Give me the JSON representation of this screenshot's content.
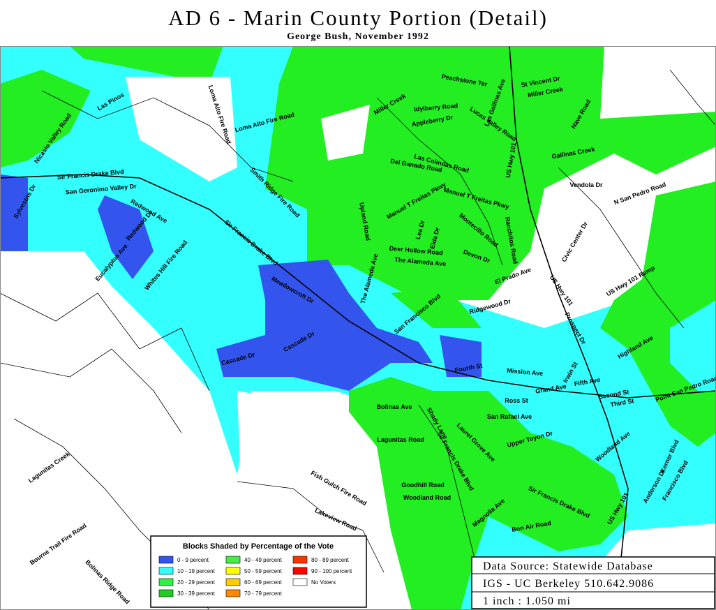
{
  "header": {
    "title": "AD 6 - Marin County Portion (Detail)",
    "subtitle": "George Bush, November 1992"
  },
  "legend": {
    "title": "Blocks Shaded by Percentage of the Vote",
    "items": [
      {
        "label": "0 - 9 percent",
        "color": "#3355ee"
      },
      {
        "label": "10 - 19 percent",
        "color": "#33ffff"
      },
      {
        "label": "20 - 29 percent",
        "color": "#33ee44"
      },
      {
        "label": "30 - 39 percent",
        "color": "#22cc22"
      },
      {
        "label": "40 - 49 percent",
        "color": "#44ee44"
      },
      {
        "label": "50 - 59 percent",
        "color": "#ffff00"
      },
      {
        "label": "60 - 69 percent",
        "color": "#ffcc00"
      },
      {
        "label": "70 - 79 percent",
        "color": "#ff8800"
      },
      {
        "label": "80 - 89 percent",
        "color": "#ff3300"
      },
      {
        "label": "90 - 100 percent",
        "color": "#ff0000"
      },
      {
        "label": "No Voters",
        "color": "#ffffff"
      }
    ]
  },
  "source_box": {
    "lines": [
      "Data Source: Statewide Database",
      "IGS - UC Berkeley 510.642.9086",
      "1 inch : 1.050 mi"
    ]
  },
  "labels": [
    "Peachstone Ter",
    "St Vincent Dr",
    "Miller Creek",
    "Idylberry Road",
    "Miller Creek",
    "Appleberry Dr",
    "Lucas Valley Road",
    "Las Gallinas Ave",
    "Nave Road",
    "Loma Alto Fire Road",
    "Loma Alto Fire Road",
    "Las Pinos",
    "Nicasio Valley Road",
    "Sir Francis Drake Blvd",
    "San Geronimo Valley Dr",
    "Sylvestris Dr",
    "Redwood Dr",
    "Redwood Ave",
    "Eucalyptus Ave",
    "Whites Hill Fire Road",
    "Smith Ridge Fire Road",
    "Sir Francis Drake Blvd",
    "Meadowcroft Dr",
    "Cascade Dr",
    "Cascade Dr",
    "Las Colindas Road",
    "Del Ganado Road",
    "US Hwy 101",
    "Manuel T Freitas Pkwy",
    "Manuel T Freitas Pkwy",
    "Upland Road",
    "Lea Dr",
    "Elda Dr",
    "Montecillo Road",
    "Ranchitos Road",
    "Deer Hollow Road",
    "The Alameda Ave",
    "Devon Dr",
    "The Alameda Ave",
    "Ridgewood Dr",
    "San Francisco Blvd",
    "El Prado Ave",
    "US Hwy 101",
    "US Hwy 101 Ramp",
    "Vendola Dr",
    "N San Pedro Road",
    "Gallinas Creek",
    "Civic Center Dr",
    "Mission Ave",
    "Fourth St",
    "Grand Ave",
    "Irwin St",
    "Fifth Ave",
    "Second St",
    "Third St",
    "Point San Pedro Road",
    "Francisco Blvd",
    "Kerner Blvd",
    "Anderson Dr",
    "Woodland Ave",
    "Ross St",
    "San Rafael Ave",
    "Upper Toyon Dr",
    "Laurel Grove Ave",
    "Bolinas Ave",
    "Lagunitas Road",
    "Sir Francis Drake Blvd",
    "Shady Lane",
    "Goodhill Road",
    "Woodland Road",
    "Magnolia Ave",
    "Sir Francis Drake Blvd",
    "US Hwy 101",
    "Bon Air Road",
    "Fish Gulch Fire Road",
    "Lakeview Road",
    "Lagunitas Creek",
    "Bourne Trail Fire Road",
    "Bolinas Ridge Road",
    "Highland Ave",
    "Prospect Dr"
  ]
}
